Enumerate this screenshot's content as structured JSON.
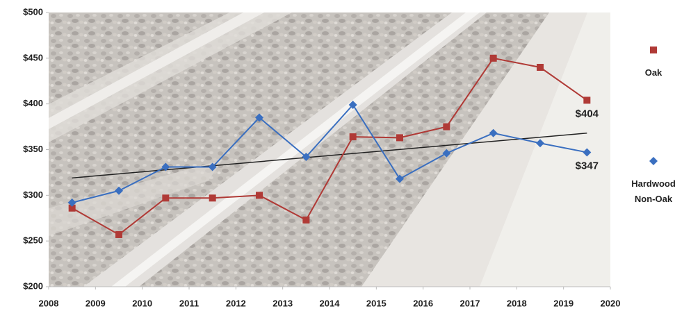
{
  "chart_data": {
    "type": "line",
    "x": [
      2008.5,
      2009.5,
      2010.5,
      2011.5,
      2012.5,
      2013.5,
      2014.5,
      2015.5,
      2016.5,
      2017.5,
      2018.5,
      2019.5
    ],
    "series": [
      {
        "name": "Oak",
        "color": "#b03a36",
        "marker": "square",
        "values": [
          286,
          257,
          297,
          297,
          300,
          273,
          364,
          363,
          375,
          450,
          440,
          404
        ],
        "value_labels": [
          null,
          null,
          null,
          null,
          null,
          null,
          null,
          null,
          null,
          null,
          null,
          "$404"
        ]
      },
      {
        "name": "Hardwood Non-Oak",
        "color": "#3a6fc0",
        "marker": "diamond",
        "values": [
          292,
          305,
          331,
          331,
          385,
          342,
          399,
          318,
          346,
          368,
          357,
          347
        ],
        "value_labels": [
          null,
          null,
          null,
          null,
          null,
          null,
          null,
          null,
          null,
          null,
          null,
          "$347"
        ]
      }
    ],
    "trendline": {
      "x": [
        2008.5,
        2019.5
      ],
      "values": [
        319,
        368
      ],
      "color": "#222222"
    },
    "xlim": [
      2008,
      2020
    ],
    "xticks": [
      2008,
      2009,
      2010,
      2011,
      2012,
      2013,
      2014,
      2015,
      2016,
      2017,
      2018,
      2019,
      2020
    ],
    "ylim": [
      200,
      500
    ],
    "yticks": [
      {
        "value": 200,
        "label": "$200"
      },
      {
        "value": 250,
        "label": "$250"
      },
      {
        "value": 300,
        "label": "$300"
      },
      {
        "value": 350,
        "label": "$350"
      },
      {
        "value": 400,
        "label": "$400"
      },
      {
        "value": 450,
        "label": "$450"
      },
      {
        "value": 500,
        "label": "$500"
      }
    ],
    "legend": "right"
  }
}
